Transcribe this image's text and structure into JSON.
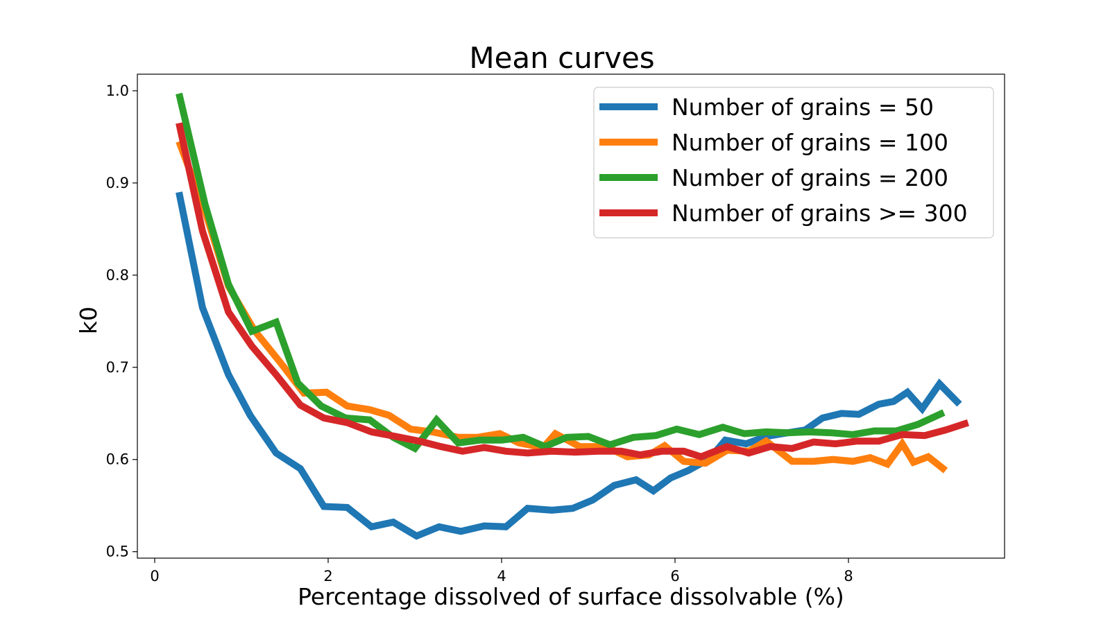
{
  "chart_data": {
    "type": "line",
    "title": "Mean curves",
    "xlabel": "Percentage dissolved of surface dissolvable (%)",
    "ylabel": "k0",
    "xlim": [
      -0.2,
      9.8
    ],
    "ylim": [
      0.493,
      1.018
    ],
    "xticks": [
      0,
      2,
      4,
      6,
      8
    ],
    "xtick_labels": [
      "0",
      "2",
      "4",
      "6",
      "8"
    ],
    "yticks": [
      0.5,
      0.6,
      0.7,
      0.8,
      0.9,
      1.0
    ],
    "ytick_labels": [
      "0.5",
      "0.6",
      "0.7",
      "0.8",
      "0.9",
      "1.0"
    ],
    "grid": false,
    "legend_position": "upper-right",
    "series": [
      {
        "name": "Number of grains = 50",
        "color": "#1f77b4",
        "x": [
          0.28,
          0.55,
          0.85,
          1.1,
          1.4,
          1.68,
          1.95,
          2.22,
          2.5,
          2.75,
          3.02,
          3.28,
          3.53,
          3.8,
          4.05,
          4.3,
          4.58,
          4.82,
          5.05,
          5.3,
          5.55,
          5.75,
          5.95,
          6.15,
          6.4,
          6.58,
          6.82,
          7.05,
          7.3,
          7.5,
          7.7,
          7.92,
          8.12,
          8.35,
          8.52,
          8.68,
          8.85,
          9.05,
          9.28
        ],
        "values": [
          0.89,
          0.765,
          0.692,
          0.648,
          0.607,
          0.59,
          0.549,
          0.548,
          0.527,
          0.532,
          0.517,
          0.527,
          0.522,
          0.528,
          0.527,
          0.547,
          0.545,
          0.547,
          0.556,
          0.572,
          0.578,
          0.566,
          0.58,
          0.588,
          0.601,
          0.621,
          0.617,
          0.625,
          0.629,
          0.632,
          0.645,
          0.65,
          0.649,
          0.66,
          0.663,
          0.673,
          0.655,
          0.682,
          0.66
        ]
      },
      {
        "name": "Number of grains = 100",
        "color": "#ff7f0e",
        "x": [
          0.28,
          0.58,
          0.85,
          1.15,
          1.45,
          1.72,
          1.98,
          2.22,
          2.48,
          2.7,
          2.95,
          3.2,
          3.5,
          3.72,
          3.98,
          4.2,
          4.48,
          4.62,
          4.9,
          5.2,
          5.45,
          5.7,
          5.88,
          6.1,
          6.35,
          6.6,
          6.85,
          7.05,
          7.35,
          7.6,
          7.82,
          8.05,
          8.25,
          8.45,
          8.62,
          8.75,
          8.92,
          9.12
        ],
        "values": [
          0.945,
          0.87,
          0.788,
          0.74,
          0.705,
          0.672,
          0.673,
          0.658,
          0.654,
          0.648,
          0.633,
          0.63,
          0.624,
          0.624,
          0.628,
          0.618,
          0.613,
          0.628,
          0.614,
          0.614,
          0.603,
          0.605,
          0.615,
          0.598,
          0.596,
          0.61,
          0.609,
          0.62,
          0.598,
          0.598,
          0.6,
          0.598,
          0.602,
          0.595,
          0.617,
          0.597,
          0.603,
          0.588
        ]
      },
      {
        "name": "Number of grains = 200",
        "color": "#2ca02c",
        "x": [
          0.28,
          0.58,
          0.85,
          1.12,
          1.4,
          1.65,
          1.92,
          2.2,
          2.48,
          2.75,
          3.0,
          3.25,
          3.5,
          3.75,
          4.0,
          4.25,
          4.5,
          4.75,
          5.0,
          5.25,
          5.52,
          5.78,
          6.02,
          6.28,
          6.55,
          6.8,
          7.05,
          7.3,
          7.55,
          7.8,
          8.05,
          8.3,
          8.55,
          8.8,
          9.1
        ],
        "values": [
          0.997,
          0.877,
          0.79,
          0.739,
          0.749,
          0.683,
          0.658,
          0.645,
          0.643,
          0.624,
          0.612,
          0.643,
          0.618,
          0.621,
          0.621,
          0.624,
          0.614,
          0.624,
          0.625,
          0.616,
          0.624,
          0.626,
          0.633,
          0.627,
          0.635,
          0.628,
          0.63,
          0.629,
          0.63,
          0.629,
          0.627,
          0.631,
          0.631,
          0.638,
          0.651
        ]
      },
      {
        "name": "Number of grains >= 300",
        "color": "#d62728",
        "x": [
          0.28,
          0.55,
          0.85,
          1.12,
          1.4,
          1.68,
          1.95,
          2.22,
          2.5,
          2.78,
          3.05,
          3.3,
          3.55,
          3.8,
          4.05,
          4.3,
          4.58,
          4.85,
          5.12,
          5.38,
          5.6,
          5.85,
          6.1,
          6.3,
          6.6,
          6.85,
          7.1,
          7.35,
          7.6,
          7.85,
          8.1,
          8.35,
          8.62,
          8.88,
          9.12,
          9.38
        ],
        "values": [
          0.965,
          0.848,
          0.76,
          0.723,
          0.692,
          0.659,
          0.645,
          0.64,
          0.63,
          0.625,
          0.62,
          0.614,
          0.609,
          0.613,
          0.609,
          0.607,
          0.609,
          0.608,
          0.609,
          0.609,
          0.605,
          0.609,
          0.609,
          0.603,
          0.614,
          0.607,
          0.614,
          0.612,
          0.619,
          0.617,
          0.62,
          0.62,
          0.627,
          0.626,
          0.632,
          0.64
        ]
      }
    ]
  }
}
